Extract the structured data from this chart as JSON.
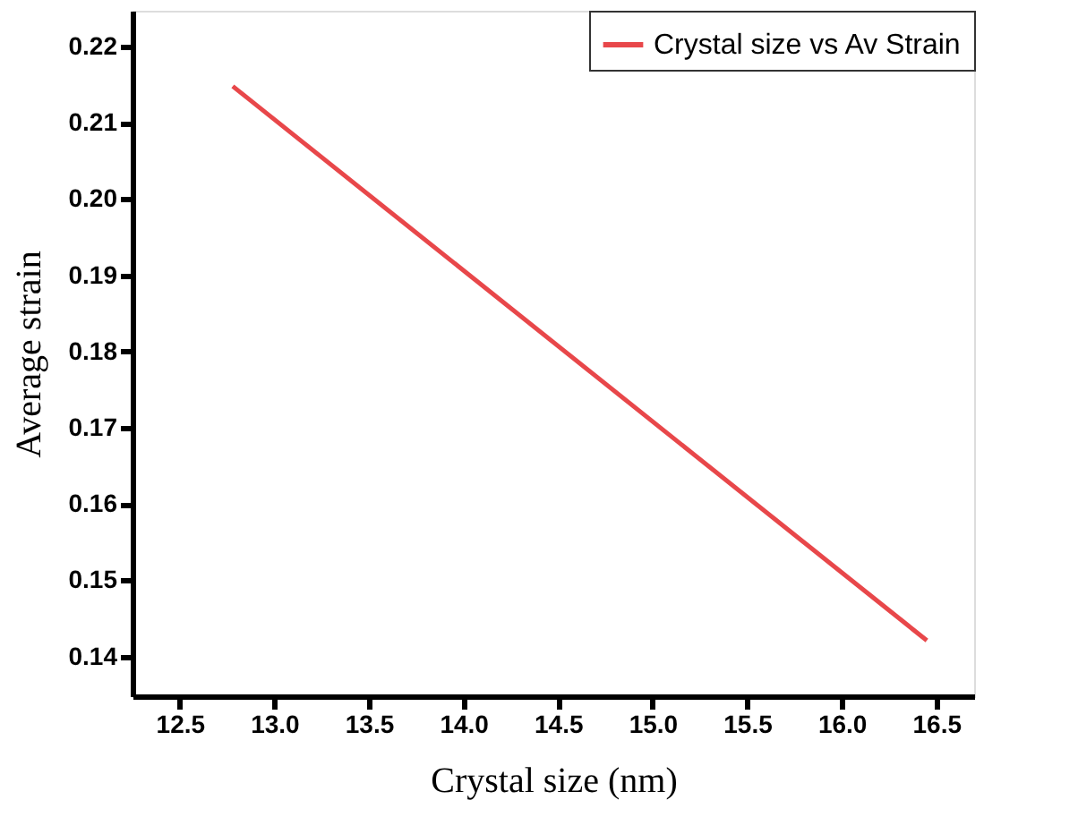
{
  "chart_data": {
    "type": "line",
    "xlabel": "Crystal size (nm)",
    "ylabel": "Average strain",
    "x": [
      12.78,
      16.45
    ],
    "series": [
      {
        "name": "Crystal size vs Av Strain",
        "color": "#e8474a",
        "values": [
          0.2148,
          0.1421
        ]
      }
    ],
    "xlim": [
      12.25,
      16.7
    ],
    "xticks": [
      {
        "value": 12.5,
        "label": "12.5"
      },
      {
        "value": 13,
        "label": "13.0"
      },
      {
        "value": 13.5,
        "label": "13.5"
      },
      {
        "value": 14,
        "label": "14.0"
      },
      {
        "value": 14.5,
        "label": "14.5"
      },
      {
        "value": 15,
        "label": "15.0"
      },
      {
        "value": 15.5,
        "label": "15.5"
      },
      {
        "value": 16,
        "label": "16.0"
      },
      {
        "value": 16.5,
        "label": "16.5"
      }
    ],
    "ylim": [
      0.1348,
      0.2247
    ],
    "yticks": [
      0.14,
      0.15,
      0.16,
      0.17,
      0.18,
      0.19,
      {
        "value": 0.2,
        "label": "0.20"
      },
      0.21,
      0.22
    ],
    "grid": false,
    "legend": "top right",
    "marker": "none",
    "line_style": "solid"
  }
}
